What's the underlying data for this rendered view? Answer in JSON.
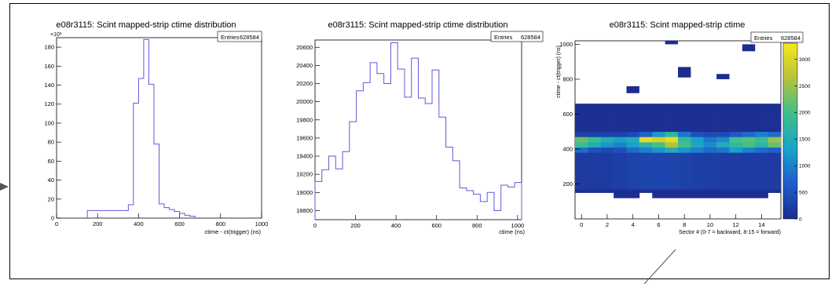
{
  "chart_data": [
    {
      "type": "bar",
      "title": "e08r3115: Scint mapped-strip ctime distribution",
      "xlabel": "ctime - ct(trigger) (ns)",
      "ylabel": "",
      "stats": {
        "label": "Entries",
        "value": "628584"
      },
      "y_multiplier": "×10³",
      "xlim": [
        0,
        1000
      ],
      "ylim": [
        0,
        190
      ],
      "xticks": [
        0,
        200,
        400,
        600,
        800,
        1000
      ],
      "yticks": [
        0,
        20,
        40,
        60,
        80,
        100,
        120,
        140,
        160,
        180
      ],
      "bin_edges": [
        150,
        350,
        375,
        400,
        425,
        450,
        475,
        500,
        525,
        550,
        575,
        600,
        625,
        650,
        675
      ],
      "values": [
        8,
        14,
        121,
        147,
        188,
        141,
        78,
        15,
        11,
        9,
        7,
        5,
        3,
        2
      ]
    },
    {
      "type": "bar",
      "title": "e08r3115: Scint mapped-strip ctime distribution",
      "xlabel": "ctime (ns)",
      "ylabel": "",
      "stats": {
        "label": "Entries",
        "value": "628584"
      },
      "xlim": [
        0,
        1020
      ],
      "ylim": [
        18700,
        20680
      ],
      "xticks": [
        0,
        200,
        400,
        600,
        800,
        1000
      ],
      "yticks": [
        18800,
        19000,
        19200,
        19400,
        19600,
        19800,
        20000,
        20200,
        20400,
        20600
      ],
      "bin_edges": [
        0,
        34,
        68,
        102,
        136,
        170,
        204,
        238,
        272,
        306,
        340,
        374,
        408,
        442,
        476,
        510,
        544,
        578,
        612,
        646,
        680,
        714,
        748,
        782,
        816,
        850,
        884,
        918,
        952,
        986,
        1020
      ],
      "values": [
        19120,
        19250,
        19400,
        19260,
        19450,
        19780,
        20120,
        20210,
        20430,
        20310,
        20200,
        20650,
        20360,
        20050,
        20480,
        20040,
        19980,
        20350,
        19830,
        19500,
        19350,
        19050,
        19020,
        18980,
        18900,
        19000,
        18800,
        19080,
        19060,
        19110
      ]
    },
    {
      "type": "heatmap",
      "title": "e08r3115: Scint mapped-strip ctime",
      "xlabel": "Sector # (0-7 = backward, 8-15 = forward)",
      "ylabel": "ctime - ct(trigger) (ns)",
      "stats": {
        "label": "Entries",
        "value": "628584"
      },
      "xlim": [
        -0.5,
        15.5
      ],
      "ylim": [
        0,
        1020
      ],
      "xticks": [
        0,
        2,
        4,
        6,
        8,
        10,
        12,
        14
      ],
      "yticks": [
        200,
        400,
        600,
        800,
        1000
      ],
      "z_range": [
        0,
        3300
      ],
      "colorbar_ticks": [
        0,
        500,
        1000,
        1500,
        2000,
        2500,
        3000
      ],
      "colorbar_labels": [
        "0",
        "500",
        "1000",
        "1500",
        "2000",
        "2500",
        "3000"
      ],
      "y_bin_edges": [
        120,
        170,
        380,
        410,
        440,
        470,
        500,
        660
      ],
      "background_z": 40,
      "bottom_gaps": [
        3,
        4,
        6,
        7,
        8,
        9,
        10,
        11,
        12,
        13,
        14
      ],
      "rows": [
        [
          40,
          40,
          40,
          40,
          40,
          40,
          40,
          40,
          40,
          40,
          40,
          40,
          40,
          40,
          40,
          40
        ],
        [
          200,
          200,
          220,
          250,
          300,
          330,
          350,
          320,
          300,
          280,
          250,
          240,
          230,
          220,
          210,
          200
        ],
        [
          800,
          500,
          400,
          500,
          800,
          1000,
          1200,
          1500,
          1200,
          1000,
          800,
          900,
          1300,
          1000,
          800,
          700
        ],
        [
          1900,
          1500,
          1200,
          1000,
          1300,
          1700,
          2000,
          2600,
          2000,
          1400,
          1100,
          1500,
          1800,
          2000,
          1700,
          2200
        ],
        [
          2200,
          1900,
          1500,
          1300,
          1500,
          3100,
          2900,
          3100,
          1800,
          1300,
          900,
          1100,
          2000,
          2100,
          1900,
          2500
        ],
        [
          300,
          300,
          300,
          300,
          400,
          700,
          1200,
          1700,
          900,
          500,
          400,
          400,
          600,
          800,
          1000,
          800
        ],
        [
          40,
          40,
          40,
          40,
          40,
          40,
          40,
          40,
          40,
          40,
          40,
          40,
          40,
          40,
          40,
          40
        ]
      ],
      "isolated_cells": [
        {
          "x": 4,
          "y0": 720,
          "y1": 760,
          "z": 10
        },
        {
          "x": 7,
          "y0": 1000,
          "y1": 1020,
          "z": 10
        },
        {
          "x": 8,
          "y0": 810,
          "y1": 870,
          "z": 10
        },
        {
          "x": 11,
          "y0": 800,
          "y1": 830,
          "z": 10
        },
        {
          "x": 13,
          "y0": 960,
          "y1": 1000,
          "z": 10
        }
      ]
    }
  ]
}
